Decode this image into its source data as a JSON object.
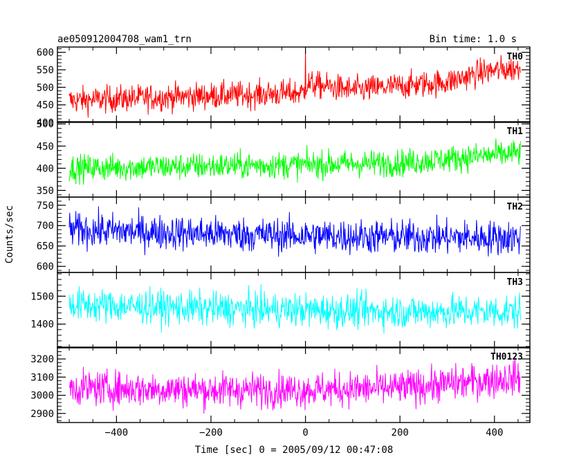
{
  "header": {
    "title": "ae050912004708_wam1_trn",
    "bin_time": "Bin time: 1.0 s"
  },
  "chart_data": {
    "type": "line",
    "title": "ae050912004708_wam1_trn",
    "subtitle": "Bin time: 1.0 s",
    "xlabel": "Time [sec] 0 = 2005/09/12 00:47:08",
    "ylabel": "Counts/sec",
    "xlim": [
      -525,
      475
    ],
    "x_ticks": [
      -400,
      -200,
      0,
      200,
      400
    ],
    "x_tick_labels": [
      "−400",
      "−200",
      "0",
      "200",
      "400"
    ],
    "x_range": [
      -500,
      455
    ],
    "bin_time_s": 1.0,
    "grid": false,
    "legend": "none",
    "panels": [
      {
        "name": "TH0",
        "color": "#ff0000",
        "ylim": [
          400,
          615
        ],
        "y_ticks": [
          400,
          450,
          500,
          550,
          600
        ],
        "y_tick_labels": [
          "400",
          "450",
          "500",
          "550",
          "600"
        ],
        "trend_x": [
          -500,
          -300,
          -100,
          -5,
          5,
          100,
          300,
          380,
          455
        ],
        "trend_mean": [
          462,
          472,
          480,
          485,
          510,
          492,
          515,
          545,
          555
        ],
        "noise_amplitude": 38,
        "spike": {
          "x": 0,
          "value": 615
        }
      },
      {
        "name": "TH1",
        "color": "#00ff00",
        "ylim": [
          335,
          505
        ],
        "y_ticks": [
          350,
          400,
          450,
          500
        ],
        "y_tick_labels": [
          "350",
          "400",
          "450",
          "500"
        ],
        "trend_x": [
          -500,
          -200,
          0,
          200,
          380,
          455
        ],
        "trend_mean": [
          400,
          405,
          408,
          412,
          428,
          435
        ],
        "noise_amplitude": 30
      },
      {
        "name": "TH2",
        "color": "#0000ff",
        "ylim": [
          585,
          770
        ],
        "y_ticks": [
          600,
          650,
          700,
          750
        ],
        "y_tick_labels": [
          "600",
          "650",
          "700",
          "750"
        ],
        "trend_x": [
          -500,
          -200,
          0,
          200,
          455
        ],
        "trend_mean": [
          690,
          680,
          675,
          672,
          670
        ],
        "noise_amplitude": 42
      },
      {
        "name": "TH3",
        "color": "#00ffff",
        "ylim": [
          1315,
          1585
        ],
        "y_ticks": [
          1400,
          1500
        ],
        "y_tick_labels": [
          "1400",
          "1500"
        ],
        "trend_x": [
          -500,
          -200,
          0,
          200,
          455
        ],
        "trend_mean": [
          1470,
          1455,
          1450,
          1445,
          1445
        ],
        "noise_amplitude": 60
      },
      {
        "name": "TH0123",
        "color": "#ff00ff",
        "ylim": [
          2850,
          3265
        ],
        "y_ticks": [
          2900,
          3000,
          3100,
          3200
        ],
        "y_tick_labels": [
          "2900",
          "3000",
          "3100",
          "3200"
        ],
        "trend_x": [
          -500,
          -200,
          0,
          200,
          380,
          455
        ],
        "trend_mean": [
          3040,
          3030,
          3030,
          3040,
          3080,
          3100
        ],
        "noise_amplitude": 95
      }
    ]
  }
}
